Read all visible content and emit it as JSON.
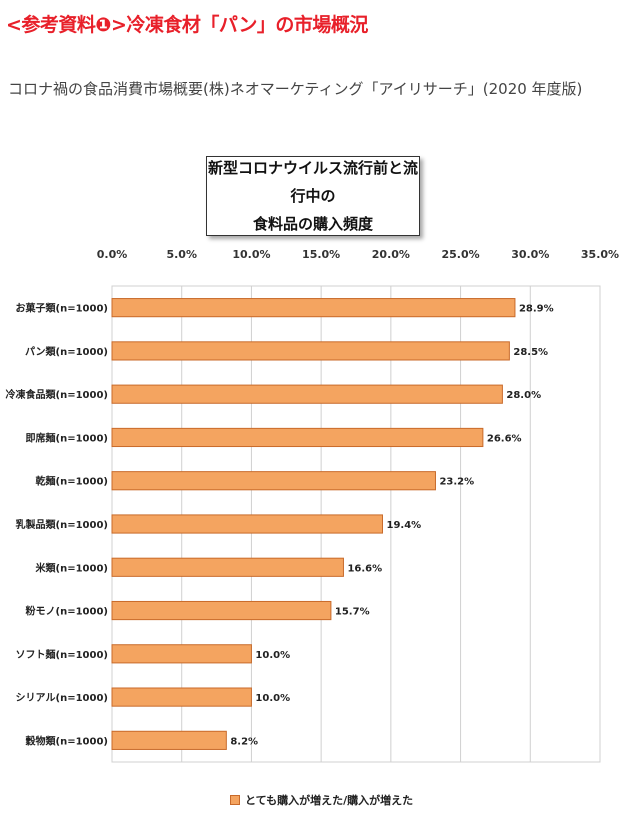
{
  "heading": "<参考資料❶>冷凍食材「パン」の市場概況",
  "subtitle": "コロナ禍の食品消費市場概要(株)ネオマーケティング「アイリサーチ」(2020 年度版)",
  "colors": {
    "heading": "#e8202a",
    "bar": "#f4a460",
    "bar_border": "#c86a2a"
  },
  "chart_data": {
    "type": "bar",
    "orientation": "horizontal",
    "title": "新型コロナウイルス流行前と流行中の\n食料品の購入頻度",
    "categories": [
      "お菓子類(n=1000)",
      "パン類(n=1000)",
      "冷凍食品類(n=1000)",
      "即席麺(n=1000)",
      "乾麺(n=1000)",
      "乳製品類(n=1000)",
      "米類(n=1000)",
      "粉モノ(n=1000)",
      "ソフト麺(n=1000)",
      "シリアル(n=1000)",
      "穀物類(n=1000)"
    ],
    "series": [
      {
        "name": "とても購入が増えた/購入が増えた",
        "values": [
          28.9,
          28.5,
          28.0,
          26.6,
          23.2,
          19.4,
          16.6,
          15.7,
          10.0,
          10.0,
          8.2
        ]
      }
    ],
    "data_labels": [
      "28.9%",
      "28.5%",
      "28.0%",
      "26.6%",
      "23.2%",
      "19.4%",
      "16.6%",
      "15.7%",
      "10.0%",
      "10.0%",
      "8.2%"
    ],
    "tick_labels": [
      "0.0%",
      "5.0%",
      "10.0%",
      "15.0%",
      "20.0%",
      "25.0%",
      "30.0%",
      "35.0%"
    ],
    "xlim": [
      0,
      35
    ],
    "axis_position": "top",
    "grid": true,
    "legend_position": "bottom"
  }
}
